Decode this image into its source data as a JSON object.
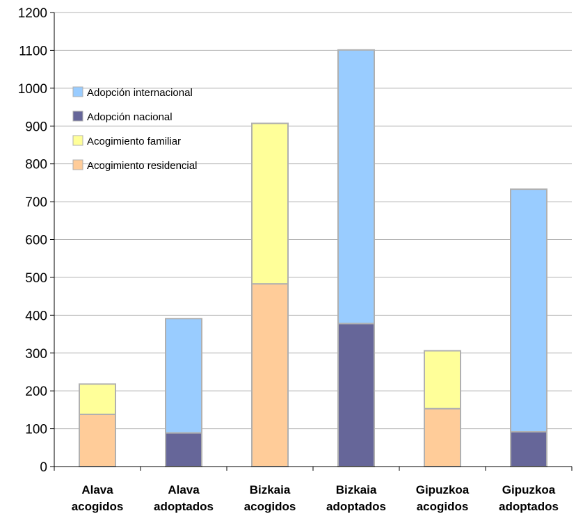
{
  "chart_data": {
    "type": "bar",
    "stacked": true,
    "title": "",
    "xlabel": "",
    "ylabel": "",
    "ylim": [
      0,
      1200
    ],
    "yticks": [
      0,
      100,
      200,
      300,
      400,
      500,
      600,
      700,
      800,
      900,
      1000,
      1100,
      1200
    ],
    "grid": true,
    "legend_position": "top-left",
    "categories": [
      [
        "Alava",
        "acogidos"
      ],
      [
        "Alava",
        "adoptados"
      ],
      [
        "Bizkaia",
        "acogidos"
      ],
      [
        "Bizkaia",
        "adoptados"
      ],
      [
        "Gipuzkoa",
        "acogidos"
      ],
      [
        "Gipuzkoa",
        "adoptados"
      ]
    ],
    "series": [
      {
        "name": "Acogimiento residencial",
        "color": "#FFCC99",
        "values": [
          138,
          0,
          483,
          0,
          153,
          0
        ]
      },
      {
        "name": "Acogimiento familiar",
        "color": "#FFFF99",
        "values": [
          80,
          0,
          424,
          0,
          153,
          0
        ]
      },
      {
        "name": "Adopción nacional",
        "color": "#666699",
        "values": [
          0,
          89,
          0,
          378,
          0,
          92
        ]
      },
      {
        "name": "Adopción internacional",
        "color": "#99CCFF",
        "values": [
          0,
          302,
          0,
          723,
          0,
          641
        ]
      }
    ],
    "legend_order": [
      "Adopción internacional",
      "Adopción nacional",
      "Acogimiento familiar",
      "Acogimiento residencial"
    ]
  }
}
